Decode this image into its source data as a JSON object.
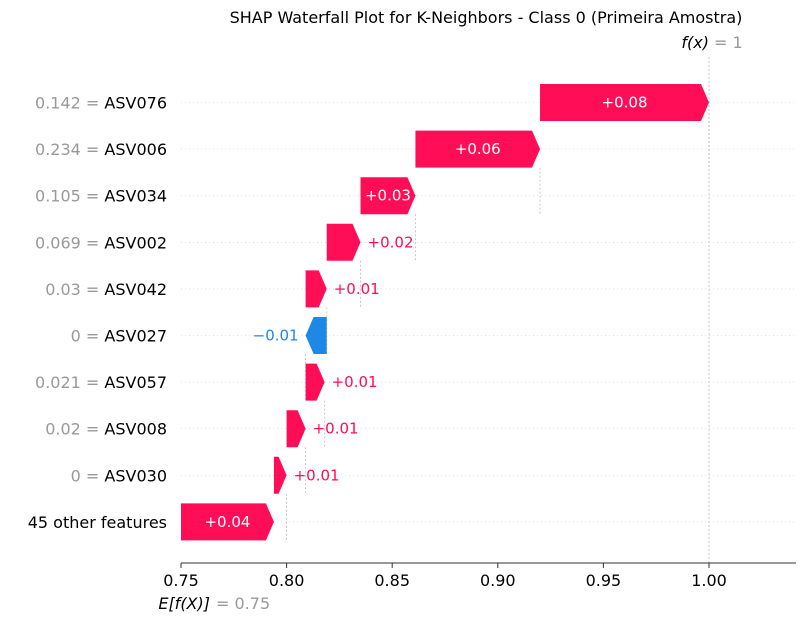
{
  "chart_data": {
    "type": "waterfall",
    "title": "SHAP Waterfall Plot for K-Neighbors - Class 0 (Primeira Amostra)",
    "fx_label": "f(x)",
    "fx_value_text": "= 1",
    "fx_value": 1.0,
    "base_label": "E[f(X)]",
    "base_value_text": "= 0.75",
    "base_value": 0.75,
    "xlim": [
      0.75,
      1.04
    ],
    "xticks": [
      0.75,
      0.8,
      0.85,
      0.9,
      0.95,
      1.0
    ],
    "xtick_labels": [
      "0.75",
      "0.80",
      "0.85",
      "0.90",
      "0.95",
      "1.00"
    ],
    "rows": [
      {
        "feature_value": "0.142",
        "feature": "ASV076",
        "start": 0.92,
        "end": 1.0,
        "label": "+0.08",
        "label_inside": true
      },
      {
        "feature_value": "0.234",
        "feature": "ASV006",
        "start": 0.861,
        "end": 0.92,
        "label": "+0.06",
        "label_inside": true
      },
      {
        "feature_value": "0.105",
        "feature": "ASV034",
        "start": 0.835,
        "end": 0.861,
        "label": "+0.03",
        "label_inside": true
      },
      {
        "feature_value": "0.069",
        "feature": "ASV002",
        "start": 0.819,
        "end": 0.835,
        "label": "+0.02",
        "label_inside": false
      },
      {
        "feature_value": "0.03",
        "feature": "ASV042",
        "start": 0.809,
        "end": 0.819,
        "label": "+0.01",
        "label_inside": false
      },
      {
        "feature_value": "0",
        "feature": "ASV027",
        "start": 0.819,
        "end": 0.809,
        "label": "−0.01",
        "label_inside": false
      },
      {
        "feature_value": "0.021",
        "feature": "ASV057",
        "start": 0.809,
        "end": 0.818,
        "label": "+0.01",
        "label_inside": false
      },
      {
        "feature_value": "0.02",
        "feature": "ASV008",
        "start": 0.8,
        "end": 0.809,
        "label": "+0.01",
        "label_inside": false
      },
      {
        "feature_value": "0",
        "feature": "ASV030",
        "start": 0.794,
        "end": 0.8,
        "label": "+0.01",
        "label_inside": false
      },
      {
        "feature_value": "",
        "feature": "45 other features",
        "start": 0.75,
        "end": 0.794,
        "label": "+0.04",
        "label_inside": true
      }
    ],
    "colors": {
      "positive": "#ff0d57",
      "negative": "#1e88e5",
      "muted": "#999999",
      "text": "#000000",
      "grid": "#cccccc"
    }
  }
}
